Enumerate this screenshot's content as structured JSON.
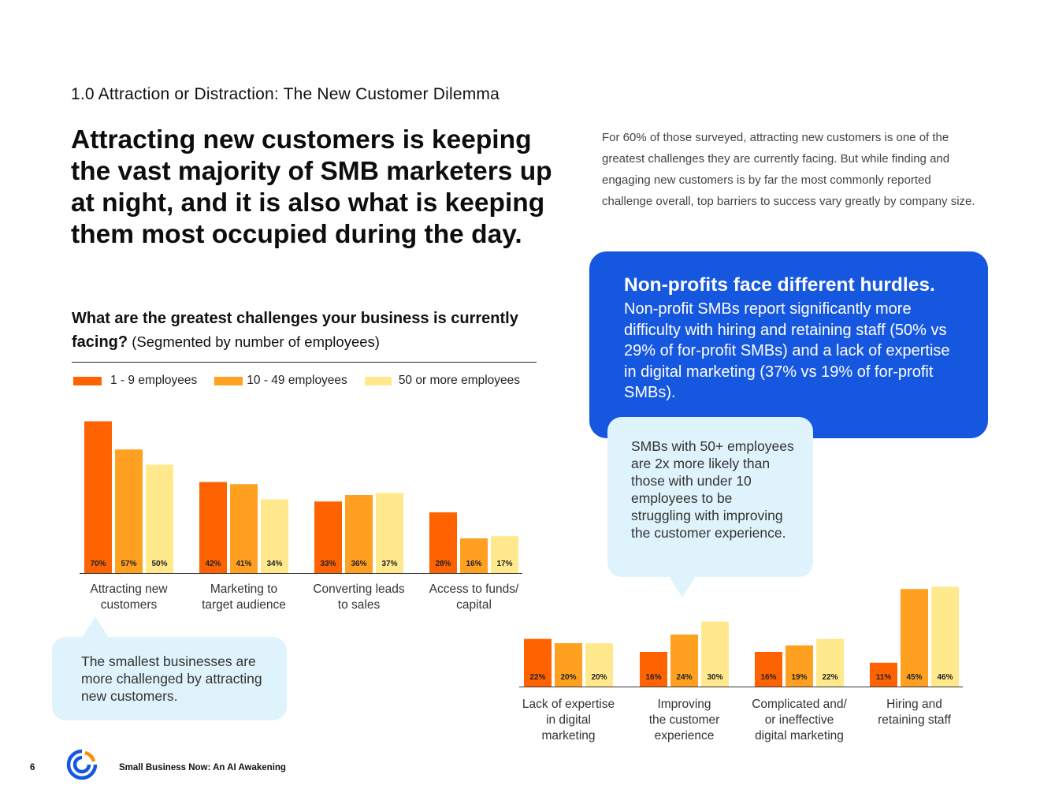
{
  "section_label": "1.0 Attraction or Distraction: The New Customer Dilemma",
  "headline": "Attracting new customers is keeping the vast majority of SMB marketers up at night, and it is also what is keeping them most occupied during the day.",
  "intro": "For 60% of those surveyed, attracting new customers is one of the greatest challenges they are currently facing. But while finding and engaging new customers is by far the most commonly reported challenge overall, top barriers to success vary greatly by company size.",
  "nonprofit_card": {
    "title": "Non-profits face different hurdles.",
    "body": "Non-profit SMBs report significantly more difficulty with hiring and retaining staff (50% vs 29% of for-profit SMBs) and a lack of expertise in digital marketing (37% vs 19% of for-profit SMBs)."
  },
  "callout_mid": "SMBs with 50+ employees are 2x more likely than those with under 10 employees to be struggling with improving the customer experience.",
  "callout_left": "The smallest businesses are more challenged by attracting new customers.",
  "question": {
    "bold": "What are the greatest challenges your business is currently facing?",
    "note": " (Segmented by number of employees)"
  },
  "colors": {
    "small": "#ff6200",
    "medium": "#ffa020",
    "large": "#ffe98c",
    "card_blue": "#1657e0",
    "callout": "#def3fb"
  },
  "chart_data": [
    {
      "type": "bar",
      "title": "What are the greatest challenges your business is currently facing?",
      "subtitle": "(Segmented by number of employees)",
      "legend": "top-left",
      "categories": [
        "Attracting new customers",
        "Marketing to target audience",
        "Converting leads to sales",
        "Access to funds/ capital"
      ],
      "category_lines": [
        [
          "Attracting new",
          "customers"
        ],
        [
          "Marketing to",
          "target audience"
        ],
        [
          "Converting leads",
          "to sales"
        ],
        [
          "Access to funds/",
          "capital"
        ]
      ],
      "series": [
        {
          "name": "1 - 9 employees",
          "values": [
            70,
            42,
            33,
            28
          ],
          "labels": [
            "70%",
            "42%",
            "33%",
            "28%"
          ]
        },
        {
          "name": "10 - 49 employees",
          "values": [
            57,
            41,
            36,
            16
          ],
          "labels": [
            "57%",
            "41%",
            "36%",
            "16%"
          ]
        },
        {
          "name": "50 or more employees",
          "values": [
            50,
            34,
            37,
            17
          ],
          "labels": [
            "50%",
            "34%",
            "37%",
            "17%"
          ]
        }
      ],
      "ylim": [
        0,
        70
      ]
    },
    {
      "type": "bar",
      "categories": [
        "Lack of expertise in digital marketing",
        "Improving the customer experience",
        "Complicated and/ or ineffective digital marketing",
        "Hiring and retaining staff"
      ],
      "category_lines": [
        [
          "Lack of expertise",
          "in digital",
          "marketing"
        ],
        [
          "Improving",
          "the customer",
          "experience"
        ],
        [
          "Complicated and/",
          "or ineffective",
          "digital marketing"
        ],
        [
          "Hiring and",
          "retaining staff"
        ]
      ],
      "series": [
        {
          "name": "1 - 9 employees",
          "values": [
            22,
            16,
            16,
            11
          ],
          "labels": [
            "22%",
            "16%",
            "16%",
            "11%"
          ]
        },
        {
          "name": "10 - 49 employees",
          "values": [
            20,
            24,
            19,
            45
          ],
          "labels": [
            "20%",
            "24%",
            "19%",
            "45%"
          ]
        },
        {
          "name": "50 or more employees",
          "values": [
            20,
            30,
            22,
            46
          ],
          "labels": [
            "20%",
            "30%",
            "22%",
            "46%"
          ]
        }
      ],
      "ylim": [
        0,
        70
      ]
    }
  ],
  "footer": {
    "page_number": "6",
    "title": "Small Business Now: An AI Awakening",
    "logo_icon": "constant-contact-logo-icon"
  }
}
